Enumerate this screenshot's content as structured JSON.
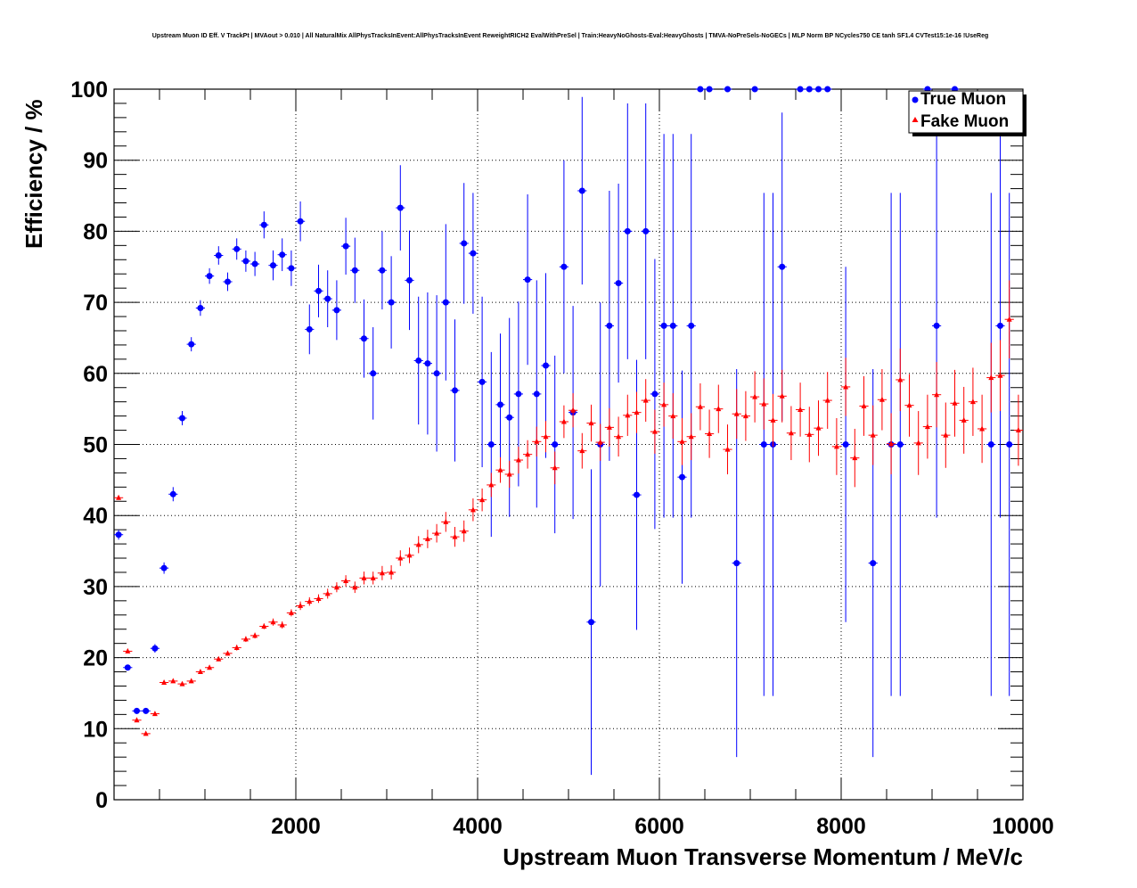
{
  "chart_data": {
    "type": "scatter",
    "title": "Upstream Muon ID Eff. V TrackPt | MVAout > 0.010 | All NaturalMix AllPhysTracksInEvent:AllPhysTracksInEvent ReweightRICH2 EvalWithPreSel | Train:HeavyNoGhosts-Eval:HeavyGhosts | TMVA-NoPreSels-NoGECs | MLP Norm BP NCycles750 CE tanh SF1.4 CVTest15:1e-16 !UseReg",
    "xlabel": "Upstream Muon Transverse Momentum / MeV/c",
    "ylabel": "Efficiency / %",
    "xlim": [
      0,
      10000
    ],
    "ylim": [
      0,
      100
    ],
    "x_ticks": [
      "2000",
      "4000",
      "6000",
      "8000",
      "10000"
    ],
    "y_ticks": [
      "0",
      "10",
      "20",
      "30",
      "40",
      "50",
      "60",
      "70",
      "80",
      "90",
      "100"
    ],
    "grid": true,
    "legend_position": "top-right",
    "series": [
      {
        "name": "True Muon",
        "color": "#0000ff",
        "marker": "circle",
        "points": [
          {
            "x": 50,
            "y": 37.3,
            "err": 0.7
          },
          {
            "x": 150,
            "y": 18.6,
            "err": 0.4
          },
          {
            "x": 250,
            "y": 12.5,
            "err": 0.4
          },
          {
            "x": 350,
            "y": 12.5,
            "err": 0.4
          },
          {
            "x": 450,
            "y": 21.3,
            "err": 0.6
          },
          {
            "x": 550,
            "y": 32.6,
            "err": 0.8
          },
          {
            "x": 650,
            "y": 43.0,
            "err": 1.0
          },
          {
            "x": 750,
            "y": 53.7,
            "err": 1.0
          },
          {
            "x": 850,
            "y": 64.1,
            "err": 1.0
          },
          {
            "x": 950,
            "y": 69.2,
            "err": 1.1
          },
          {
            "x": 1050,
            "y": 73.7,
            "err": 1.1
          },
          {
            "x": 1150,
            "y": 76.6,
            "err": 1.3
          },
          {
            "x": 1250,
            "y": 72.9,
            "err": 1.3
          },
          {
            "x": 1350,
            "y": 77.5,
            "err": 1.5
          },
          {
            "x": 1450,
            "y": 75.8,
            "err": 1.5
          },
          {
            "x": 1550,
            "y": 75.4,
            "err": 1.7
          },
          {
            "x": 1650,
            "y": 80.9,
            "err": 1.9
          },
          {
            "x": 1750,
            "y": 75.2,
            "err": 2.1
          },
          {
            "x": 1850,
            "y": 76.7,
            "err": 2.3
          },
          {
            "x": 1950,
            "y": 74.8,
            "err": 2.5
          },
          {
            "x": 2050,
            "y": 81.4,
            "err": 2.8
          },
          {
            "x": 2150,
            "y": 66.2,
            "err": 3.5
          },
          {
            "x": 2250,
            "y": 71.6,
            "err": 3.7
          },
          {
            "x": 2350,
            "y": 70.5,
            "err": 4.0
          },
          {
            "x": 2450,
            "y": 68.9,
            "err": 4.2
          },
          {
            "x": 2550,
            "y": 77.9,
            "err": 4.0
          },
          {
            "x": 2650,
            "y": 74.5,
            "err": 4.6
          },
          {
            "x": 2750,
            "y": 64.9,
            "err": 5.5
          },
          {
            "x": 2850,
            "y": 60.0,
            "err": 6.5
          },
          {
            "x": 2950,
            "y": 74.5,
            "err": 5.5
          },
          {
            "x": 3050,
            "y": 70.0,
            "err": 6.5
          },
          {
            "x": 3150,
            "y": 83.3,
            "err": 6.0
          },
          {
            "x": 3250,
            "y": 73.1,
            "err": 7.0
          },
          {
            "x": 3350,
            "y": 61.8,
            "err": 9.0
          },
          {
            "x": 3450,
            "y": 61.4,
            "err": 10.0
          },
          {
            "x": 3550,
            "y": 60.0,
            "err": 11.0
          },
          {
            "x": 3650,
            "y": 70.0,
            "err": 11.0
          },
          {
            "x": 3750,
            "y": 57.6,
            "err": 10.0
          },
          {
            "x": 3850,
            "y": 78.3,
            "err": 8.5
          },
          {
            "x": 3950,
            "y": 76.9,
            "err": 8.5
          },
          {
            "x": 4050,
            "y": 58.8,
            "err": 12.0
          },
          {
            "x": 4150,
            "y": 50.0,
            "err": 13.0
          },
          {
            "x": 4250,
            "y": 55.6,
            "err": 10.0
          },
          {
            "x": 4350,
            "y": 53.8,
            "err": 14.0
          },
          {
            "x": 4450,
            "y": 57.1,
            "err": 13.0
          },
          {
            "x": 4550,
            "y": 73.2,
            "err": 12.0
          },
          {
            "x": 4650,
            "y": 57.1,
            "err": 16.0
          },
          {
            "x": 4750,
            "y": 61.1,
            "err": 13.0
          },
          {
            "x": 4850,
            "y": 50.0,
            "err": 12.5
          },
          {
            "x": 4950,
            "y": 75.0,
            "err": 15.0
          },
          {
            "x": 5050,
            "y": 54.5,
            "err": 15.0
          },
          {
            "x": 5150,
            "y": 85.7,
            "err": 13.2
          },
          {
            "x": 5250,
            "y": 25.0,
            "err": 21.5
          },
          {
            "x": 5350,
            "y": 50.0,
            "err": 20.0
          },
          {
            "x": 5450,
            "y": 66.7,
            "err": 19.0
          },
          {
            "x": 5550,
            "y": 72.7,
            "err": 14.0
          },
          {
            "x": 5650,
            "y": 80.0,
            "err": 18.0
          },
          {
            "x": 5750,
            "y": 42.9,
            "err": 19.0
          },
          {
            "x": 5850,
            "y": 80.0,
            "err": 18.0
          },
          {
            "x": 5950,
            "y": 57.1,
            "err": 19.0
          },
          {
            "x": 6050,
            "y": 66.7,
            "err": 27.0
          },
          {
            "x": 6150,
            "y": 66.7,
            "err": 27.0
          },
          {
            "x": 6250,
            "y": 45.4,
            "err": 15.0
          },
          {
            "x": 6350,
            "y": 66.7,
            "err": 27.0
          },
          {
            "x": 6450,
            "y": 100.0,
            "err": 0
          },
          {
            "x": 6550,
            "y": 100.0,
            "err": 0
          },
          {
            "x": 6750,
            "y": 100.0,
            "err": 0
          },
          {
            "x": 6850,
            "y": 33.3,
            "err": 27.3
          },
          {
            "x": 7050,
            "y": 100.0,
            "err": 0
          },
          {
            "x": 7150,
            "y": 50.0,
            "err": 35.4
          },
          {
            "x": 7250,
            "y": 50.0,
            "err": 35.4
          },
          {
            "x": 7350,
            "y": 75.0,
            "err": 21.7
          },
          {
            "x": 7550,
            "y": 100.0,
            "err": 0
          },
          {
            "x": 7650,
            "y": 100.0,
            "err": 0
          },
          {
            "x": 7750,
            "y": 100.0,
            "err": 0
          },
          {
            "x": 7850,
            "y": 100.0,
            "err": 0
          },
          {
            "x": 8050,
            "y": 50.0,
            "err": 25.0
          },
          {
            "x": 8350,
            "y": 33.3,
            "err": 27.3
          },
          {
            "x": 8550,
            "y": 50.0,
            "err": 35.4
          },
          {
            "x": 8650,
            "y": 50.0,
            "err": 35.4
          },
          {
            "x": 8950,
            "y": 100.0,
            "err": 0
          },
          {
            "x": 9050,
            "y": 66.7,
            "err": 27.0
          },
          {
            "x": 9250,
            "y": 100.0,
            "err": 0
          },
          {
            "x": 9650,
            "y": 50.0,
            "err": 35.4
          },
          {
            "x": 9750,
            "y": 66.7,
            "err": 27.0
          },
          {
            "x": 9850,
            "y": 50.0,
            "err": 35.4
          }
        ]
      },
      {
        "name": "Fake Muon",
        "color": "#ff0000",
        "marker": "triangle",
        "points": [
          {
            "x": 50,
            "y": 42.5,
            "err": 0.3
          },
          {
            "x": 150,
            "y": 20.9,
            "err": 0.2
          },
          {
            "x": 250,
            "y": 11.2,
            "err": 0.2
          },
          {
            "x": 350,
            "y": 9.3,
            "err": 0.2
          },
          {
            "x": 450,
            "y": 12.1,
            "err": 0.2
          },
          {
            "x": 550,
            "y": 16.5,
            "err": 0.2
          },
          {
            "x": 650,
            "y": 16.7,
            "err": 0.2
          },
          {
            "x": 750,
            "y": 16.3,
            "err": 0.2
          },
          {
            "x": 850,
            "y": 16.7,
            "err": 0.3
          },
          {
            "x": 950,
            "y": 18.0,
            "err": 0.3
          },
          {
            "x": 1050,
            "y": 18.6,
            "err": 0.3
          },
          {
            "x": 1150,
            "y": 19.8,
            "err": 0.3
          },
          {
            "x": 1250,
            "y": 20.6,
            "err": 0.3
          },
          {
            "x": 1350,
            "y": 21.4,
            "err": 0.4
          },
          {
            "x": 1450,
            "y": 22.6,
            "err": 0.4
          },
          {
            "x": 1550,
            "y": 23.1,
            "err": 0.4
          },
          {
            "x": 1650,
            "y": 24.4,
            "err": 0.4
          },
          {
            "x": 1750,
            "y": 25.0,
            "err": 0.5
          },
          {
            "x": 1850,
            "y": 24.6,
            "err": 0.5
          },
          {
            "x": 1950,
            "y": 26.3,
            "err": 0.5
          },
          {
            "x": 2050,
            "y": 27.3,
            "err": 0.6
          },
          {
            "x": 2150,
            "y": 27.9,
            "err": 0.6
          },
          {
            "x": 2250,
            "y": 28.3,
            "err": 0.6
          },
          {
            "x": 2350,
            "y": 29.0,
            "err": 0.7
          },
          {
            "x": 2450,
            "y": 29.9,
            "err": 0.7
          },
          {
            "x": 2550,
            "y": 30.8,
            "err": 0.8
          },
          {
            "x": 2650,
            "y": 29.9,
            "err": 0.8
          },
          {
            "x": 2750,
            "y": 31.2,
            "err": 0.9
          },
          {
            "x": 2850,
            "y": 31.2,
            "err": 0.9
          },
          {
            "x": 2950,
            "y": 31.9,
            "err": 1.0
          },
          {
            "x": 3050,
            "y": 32.0,
            "err": 1.0
          },
          {
            "x": 3150,
            "y": 34.0,
            "err": 1.1
          },
          {
            "x": 3250,
            "y": 34.4,
            "err": 1.1
          },
          {
            "x": 3350,
            "y": 35.9,
            "err": 1.2
          },
          {
            "x": 3450,
            "y": 36.7,
            "err": 1.3
          },
          {
            "x": 3550,
            "y": 37.5,
            "err": 1.3
          },
          {
            "x": 3650,
            "y": 39.1,
            "err": 1.4
          },
          {
            "x": 3750,
            "y": 37.0,
            "err": 1.4
          },
          {
            "x": 3850,
            "y": 37.8,
            "err": 1.5
          },
          {
            "x": 3950,
            "y": 40.8,
            "err": 1.6
          },
          {
            "x": 4050,
            "y": 42.2,
            "err": 1.6
          },
          {
            "x": 4150,
            "y": 44.3,
            "err": 1.7
          },
          {
            "x": 4250,
            "y": 46.4,
            "err": 1.8
          },
          {
            "x": 4350,
            "y": 45.8,
            "err": 1.9
          },
          {
            "x": 4450,
            "y": 47.8,
            "err": 1.9
          },
          {
            "x": 4550,
            "y": 48.6,
            "err": 2.0
          },
          {
            "x": 4650,
            "y": 50.4,
            "err": 2.1
          },
          {
            "x": 4750,
            "y": 51.1,
            "err": 2.2
          },
          {
            "x": 4850,
            "y": 46.7,
            "err": 2.3
          },
          {
            "x": 4950,
            "y": 53.2,
            "err": 2.3
          },
          {
            "x": 5050,
            "y": 54.8,
            "err": 2.4
          },
          {
            "x": 5150,
            "y": 49.1,
            "err": 2.5
          },
          {
            "x": 5250,
            "y": 53.0,
            "err": 2.6
          },
          {
            "x": 5350,
            "y": 50.3,
            "err": 2.6
          },
          {
            "x": 5450,
            "y": 52.4,
            "err": 2.7
          },
          {
            "x": 5550,
            "y": 51.1,
            "err": 2.8
          },
          {
            "x": 5650,
            "y": 54.1,
            "err": 2.9
          },
          {
            "x": 5750,
            "y": 54.5,
            "err": 2.9
          },
          {
            "x": 5850,
            "y": 56.2,
            "err": 3.0
          },
          {
            "x": 5950,
            "y": 51.8,
            "err": 3.1
          },
          {
            "x": 6050,
            "y": 55.6,
            "err": 3.1
          },
          {
            "x": 6150,
            "y": 54.0,
            "err": 3.2
          },
          {
            "x": 6250,
            "y": 50.4,
            "err": 3.3
          },
          {
            "x": 6350,
            "y": 51.1,
            "err": 3.3
          },
          {
            "x": 6450,
            "y": 55.3,
            "err": 3.3
          },
          {
            "x": 6550,
            "y": 51.5,
            "err": 3.4
          },
          {
            "x": 6650,
            "y": 55.0,
            "err": 3.4
          },
          {
            "x": 6750,
            "y": 49.3,
            "err": 3.5
          },
          {
            "x": 6850,
            "y": 54.3,
            "err": 3.5
          },
          {
            "x": 6950,
            "y": 54.0,
            "err": 3.5
          },
          {
            "x": 7050,
            "y": 56.7,
            "err": 3.6
          },
          {
            "x": 7150,
            "y": 55.7,
            "err": 3.6
          },
          {
            "x": 7250,
            "y": 53.4,
            "err": 3.7
          },
          {
            "x": 7350,
            "y": 56.8,
            "err": 3.7
          },
          {
            "x": 7450,
            "y": 51.6,
            "err": 3.8
          },
          {
            "x": 7550,
            "y": 54.9,
            "err": 3.8
          },
          {
            "x": 7650,
            "y": 51.4,
            "err": 3.9
          },
          {
            "x": 7750,
            "y": 52.3,
            "err": 3.9
          },
          {
            "x": 7850,
            "y": 56.2,
            "err": 4.0
          },
          {
            "x": 7950,
            "y": 49.7,
            "err": 4.0
          },
          {
            "x": 8050,
            "y": 58.1,
            "err": 4.1
          },
          {
            "x": 8150,
            "y": 48.1,
            "err": 4.1
          },
          {
            "x": 8250,
            "y": 55.4,
            "err": 4.2
          },
          {
            "x": 8350,
            "y": 51.3,
            "err": 4.2
          },
          {
            "x": 8450,
            "y": 56.3,
            "err": 4.3
          },
          {
            "x": 8550,
            "y": 50.1,
            "err": 4.3
          },
          {
            "x": 8650,
            "y": 59.1,
            "err": 4.4
          },
          {
            "x": 8750,
            "y": 55.5,
            "err": 4.4
          },
          {
            "x": 8850,
            "y": 50.2,
            "err": 4.5
          },
          {
            "x": 8950,
            "y": 52.5,
            "err": 4.5
          },
          {
            "x": 9050,
            "y": 57.0,
            "err": 4.6
          },
          {
            "x": 9150,
            "y": 51.3,
            "err": 4.6
          },
          {
            "x": 9250,
            "y": 55.8,
            "err": 4.7
          },
          {
            "x": 9350,
            "y": 53.4,
            "err": 4.7
          },
          {
            "x": 9450,
            "y": 56.0,
            "err": 4.8
          },
          {
            "x": 9550,
            "y": 52.2,
            "err": 4.8
          },
          {
            "x": 9650,
            "y": 59.4,
            "err": 4.9
          },
          {
            "x": 9750,
            "y": 59.7,
            "err": 5.0
          },
          {
            "x": 9850,
            "y": 67.6,
            "err": 5.5
          },
          {
            "x": 9950,
            "y": 52.0,
            "err": 5.0
          }
        ]
      }
    ]
  }
}
